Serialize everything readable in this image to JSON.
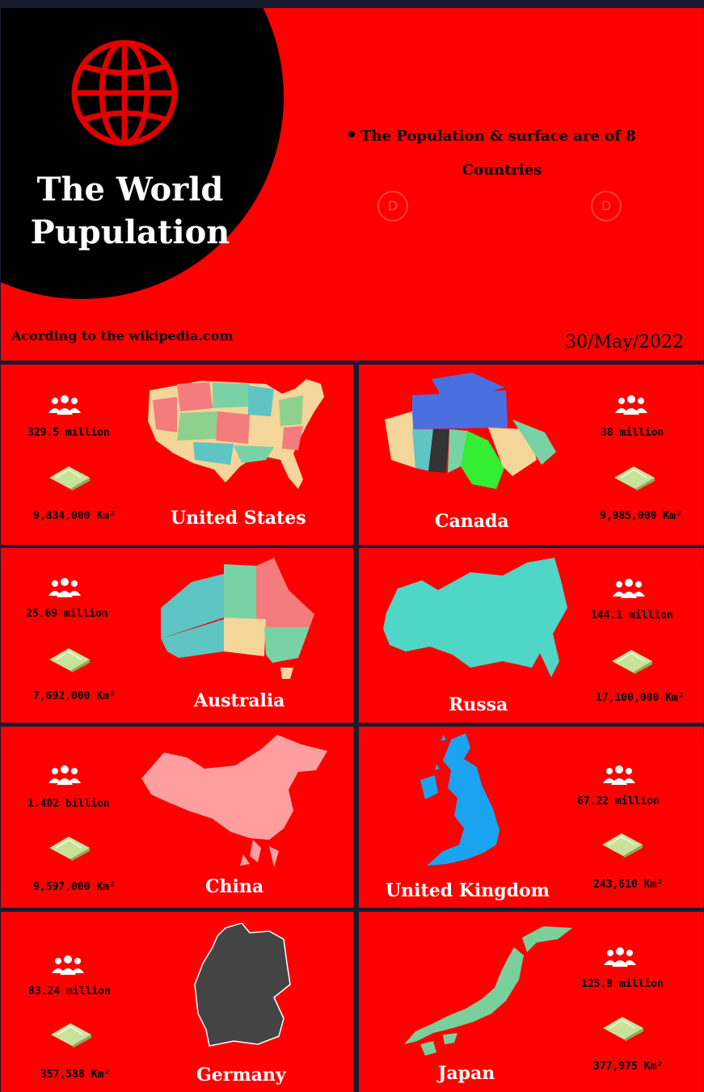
{
  "header": {
    "title_line1": "The World",
    "title_line2": "Pupulation",
    "bullet_line1": "The Population & surface are of  8",
    "bullet_line2": "Countries",
    "source": "Acording to the wikipedia.com",
    "date": "30/May/2022"
  },
  "icons": {
    "globe": "globe-icon",
    "people": "people-group-icon",
    "land": "land-area-icon"
  },
  "colors": {
    "background": "#ff0000",
    "circle": "#000000",
    "divider": "#1a1a2e"
  },
  "countries": [
    {
      "name": "United States",
      "population": "329.5 million",
      "area": "9,834,000 Km²"
    },
    {
      "name": "Canada",
      "population": "38 million",
      "area": "9,985,000 Km²"
    },
    {
      "name": "Australia",
      "population": "25.69 million",
      "area": "7,692,000 Km²"
    },
    {
      "name": "Russa",
      "population": "144.1 million",
      "area": "17,100,000 Km²"
    },
    {
      "name": "China",
      "population": "1.402 billion",
      "area": "9,597,000 Km²"
    },
    {
      "name": "United Kingdom",
      "population": "67.22 million",
      "area": "243,610 Km²"
    },
    {
      "name": "Germany",
      "population": "83.24 million",
      "area": "357,588 Km²"
    },
    {
      "name": "Japan",
      "population": "125.8 million",
      "area": "377,975 Km²"
    }
  ]
}
